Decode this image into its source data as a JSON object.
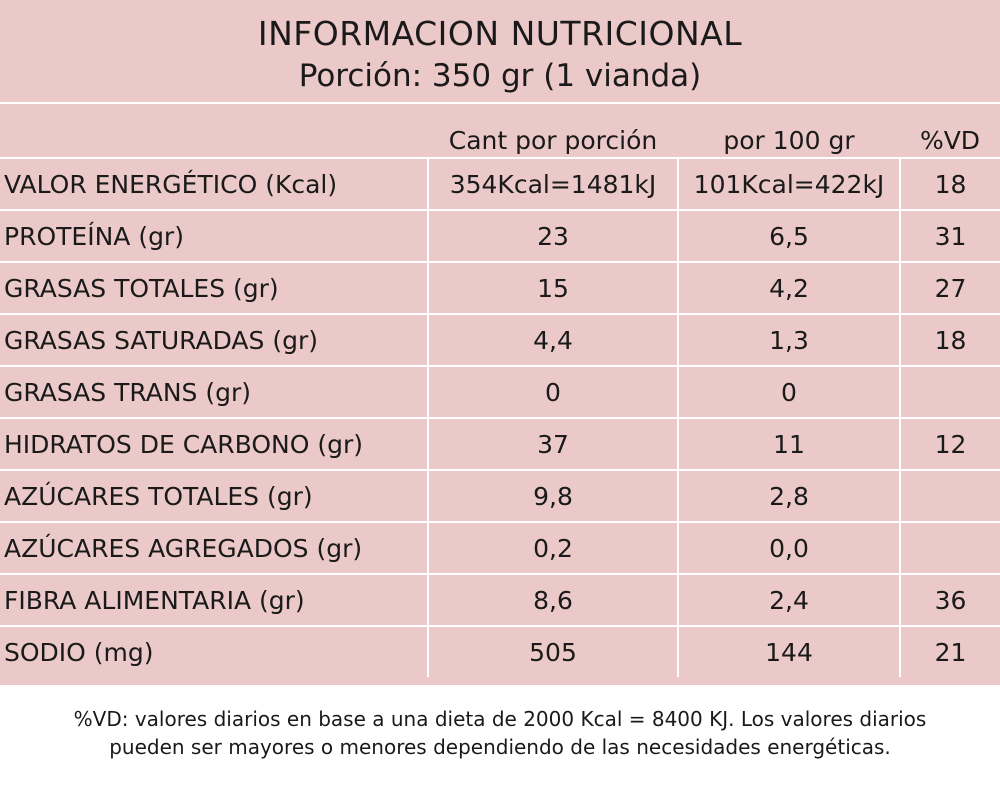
{
  "header": {
    "title": "INFORMACION NUTRICIONAL",
    "subtitle": "Porción: 350 gr (1 vianda)"
  },
  "columns": {
    "per_portion": "Cant por porción",
    "per_100": "por 100 gr",
    "vd": "%VD"
  },
  "rows": [
    {
      "name": "VALOR ENERGÉTICO  (Kcal)",
      "portion": "354Kcal=1481kJ",
      "per100": "101Kcal=422kJ",
      "vd": "18"
    },
    {
      "name": "PROTEÍNA (gr)",
      "portion": "23",
      "per100": "6,5",
      "vd": "31"
    },
    {
      "name": "GRASAS TOTALES (gr)",
      "portion": "15",
      "per100": "4,2",
      "vd": "27"
    },
    {
      "name": "GRASAS SATURADAS (gr)",
      "portion": "4,4",
      "per100": "1,3",
      "vd": "18"
    },
    {
      "name": "GRASAS TRANS (gr)",
      "portion": "0",
      "per100": "0",
      "vd": ""
    },
    {
      "name": "HIDRATOS DE CARBONO (gr)",
      "portion": "37",
      "per100": "11",
      "vd": "12"
    },
    {
      "name": "AZÚCARES TOTALES (gr)",
      "portion": "9,8",
      "per100": "2,8",
      "vd": ""
    },
    {
      "name": "AZÚCARES AGREGADOS (gr)",
      "portion": "0,2",
      "per100": "0,0",
      "vd": ""
    },
    {
      "name": "FIBRA ALIMENTARIA (gr)",
      "portion": "8,6",
      "per100": "2,4",
      "vd": "36"
    },
    {
      "name": "SODIO (mg)",
      "portion": "505",
      "per100": "144",
      "vd": "21"
    }
  ],
  "footnote": {
    "line1": "%VD:  valores diarios en base a una dieta de 2000 Kcal = 8400 KJ. Los valores diarios",
    "line2": "pueden ser mayores o menores dependiendo de las necesidades energéticas."
  },
  "colors": {
    "label_background": "#ecc9c9",
    "grid_lines": "#ffffff",
    "text": "#1a1a1a"
  }
}
